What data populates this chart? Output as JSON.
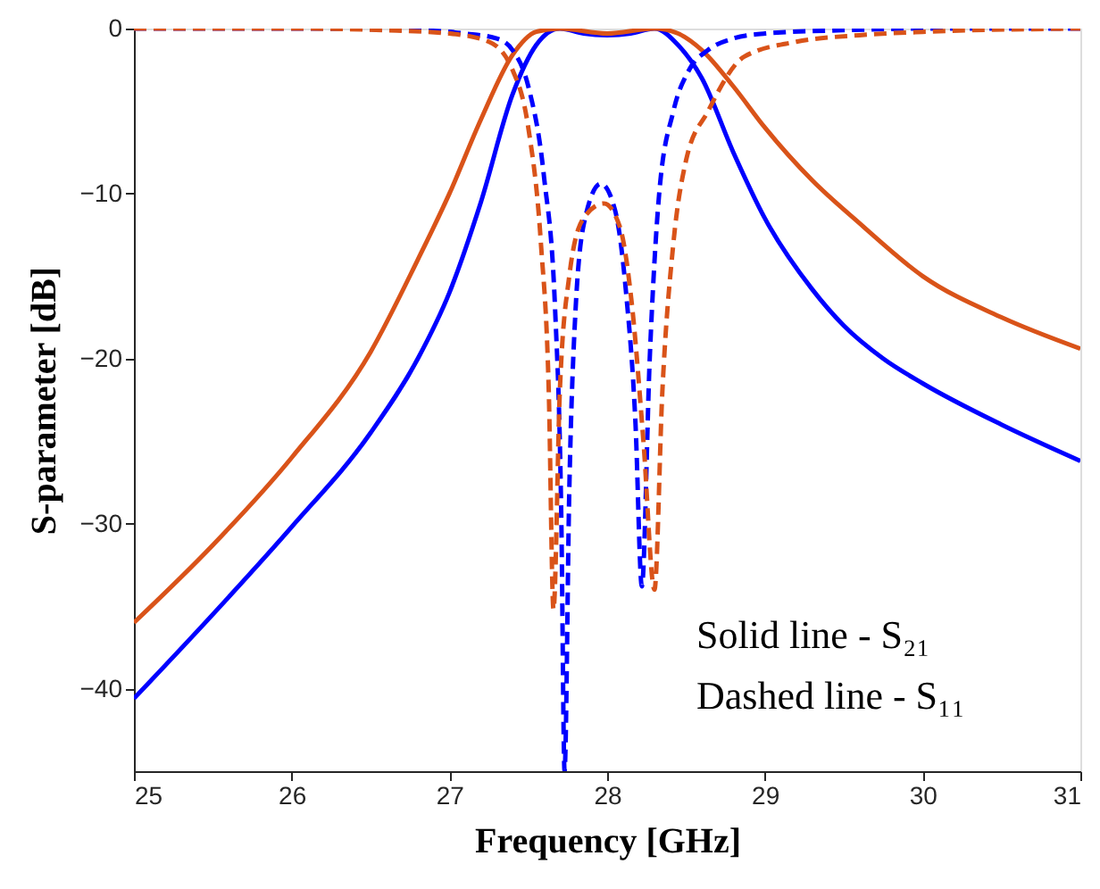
{
  "chart_data": {
    "type": "line",
    "xlabel": "Frequency [GHz]",
    "ylabel": "S-parameter [dB]",
    "xlim": [
      25,
      31
    ],
    "xticks": [
      25,
      26,
      27,
      28,
      29,
      30,
      31
    ],
    "ylim": [
      -45,
      0
    ],
    "yticks": [
      -40,
      -30,
      -20,
      -10,
      0
    ],
    "marker": "none",
    "series": [
      {
        "color": "#0000ff",
        "line_style": "solid",
        "x": [
          25,
          25.5,
          26,
          26.5,
          26.8,
          27,
          27.2,
          27.4,
          27.55,
          27.7,
          27.85,
          28,
          28.15,
          28.3,
          28.45,
          28.6,
          28.8,
          29,
          29.3,
          29.5,
          29.75,
          30,
          30.5,
          31
        ],
        "values": [
          -40.6,
          -35.5,
          -30.2,
          -24.5,
          -20,
          -16,
          -10.5,
          -4,
          -1,
          0,
          -0.3,
          -0.4,
          -0.3,
          0,
          -1,
          -3,
          -7.5,
          -11.5,
          -15.8,
          -18,
          -20,
          -21.5,
          -24,
          -26.2
        ]
      },
      {
        "color": "#d95319",
        "line_style": "solid",
        "x": [
          25,
          25.5,
          26,
          26.5,
          26.8,
          27,
          27.2,
          27.4,
          27.55,
          27.7,
          28,
          28.3,
          28.45,
          28.6,
          28.8,
          29,
          29.3,
          29.6,
          30,
          30.5,
          31
        ],
        "values": [
          -36,
          -31.3,
          -26,
          -19.6,
          -14,
          -10,
          -5.5,
          -1.6,
          -0.2,
          0,
          -0.3,
          0,
          -0.3,
          -1.3,
          -3.5,
          -6,
          -9.2,
          -11.8,
          -15,
          -17.5,
          -19.4
        ]
      },
      {
        "color": "#0000ff",
        "line_style": "dashed",
        "x": [
          25,
          26,
          26.8,
          27.1,
          27.3,
          27.4,
          27.5,
          27.6,
          27.67,
          27.71,
          27.73,
          27.76,
          27.8,
          27.86,
          27.96,
          28.05,
          28.12,
          28.18,
          28.22,
          28.27,
          28.33,
          28.42,
          28.52,
          28.64,
          28.8,
          29,
          29.5,
          30,
          31
        ],
        "values": [
          0,
          0,
          -0.1,
          -0.3,
          -0.6,
          -1.3,
          -3.5,
          -9,
          -17,
          -30,
          -45,
          -28,
          -17,
          -11.5,
          -9.4,
          -11,
          -16,
          -24,
          -33.8,
          -20,
          -10,
          -5,
          -2.5,
          -1.3,
          -0.6,
          -0.3,
          -0.1,
          0,
          0
        ]
      },
      {
        "color": "#d95319",
        "line_style": "dashed",
        "x": [
          25,
          26,
          26.6,
          27,
          27.25,
          27.4,
          27.5,
          27.58,
          27.63,
          27.66,
          27.7,
          27.76,
          27.85,
          27.98,
          28.08,
          28.16,
          28.23,
          28.3,
          28.35,
          28.42,
          28.5,
          28.64,
          28.87,
          29.2,
          29.6,
          30,
          31
        ],
        "values": [
          0,
          0,
          -0.1,
          -0.3,
          -0.8,
          -2.5,
          -6,
          -13,
          -22,
          -35.2,
          -22,
          -15,
          -11.5,
          -10.6,
          -12,
          -17,
          -25,
          -34,
          -22,
          -13,
          -8,
          -5,
          -1.7,
          -0.8,
          -0.4,
          -0.2,
          0
        ]
      }
    ],
    "annotations": [
      "Solid line - S₂₁",
      "Dashed line - S₁₁"
    ]
  }
}
